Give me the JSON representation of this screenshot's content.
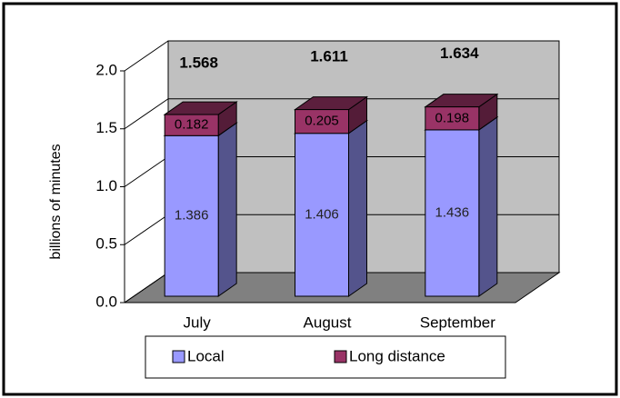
{
  "chart_data": {
    "type": "bar3d-stacked",
    "categories": [
      "July",
      "August",
      "September"
    ],
    "series": [
      {
        "name": "Local",
        "color": "#9999ff",
        "values": [
          1.386,
          1.406,
          1.436
        ]
      },
      {
        "name": "Long distance",
        "color": "#993366",
        "values": [
          0.182,
          0.205,
          0.198
        ]
      }
    ],
    "totals": [
      1.568,
      1.611,
      1.634
    ],
    "y_label": "billions of minutes",
    "ylim": [
      0,
      2
    ],
    "yticks": [
      {
        "value": 0,
        "label": "0.0"
      },
      {
        "value": 0.5,
        "label": "0.5"
      },
      {
        "value": 1,
        "label": "1.0"
      },
      {
        "value": 1.5,
        "label": "1.5"
      },
      {
        "value": 2,
        "label": "2.0"
      }
    ],
    "grid": true,
    "legend": "bottom"
  }
}
